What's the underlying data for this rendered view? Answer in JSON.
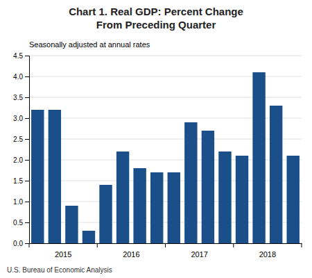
{
  "chart_data": {
    "type": "bar",
    "title": "Chart 1. Real GDP: Percent Change\nFrom Preceding Quarter",
    "subtitle": "Seasonally adjusted at annual rates",
    "footer": "U.S. Bureau of Economic Analysis",
    "categories": [
      null,
      null,
      null,
      null,
      null,
      null,
      null,
      null,
      null,
      null,
      null,
      null,
      null,
      null,
      null,
      null
    ],
    "category_groups": [
      "2015",
      "2016",
      "2017",
      "2018"
    ],
    "values": [
      3.2,
      3.2,
      0.9,
      0.3,
      1.4,
      2.2,
      1.8,
      1.7,
      1.7,
      2.9,
      2.7,
      2.2,
      2.1,
      4.1,
      3.3,
      2.1
    ],
    "color": "#1B4F8A",
    "ylim": [
      0,
      4.5
    ],
    "yticks": [
      {
        "value": 0,
        "label": "0.0"
      },
      0.5,
      {
        "value": 1.0,
        "label": "1.0"
      },
      1.5,
      {
        "value": 2.0,
        "label": "2.0"
      },
      2.5,
      {
        "value": 3.0,
        "label": "3.0"
      },
      3.5,
      {
        "value": 4.0,
        "label": "4.0"
      },
      4.5
    ],
    "grid": true
  }
}
